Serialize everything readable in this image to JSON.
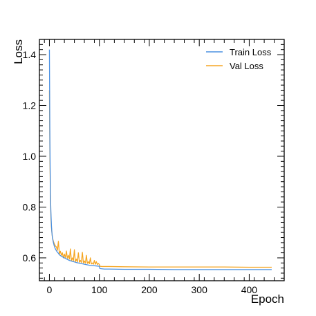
{
  "chart_data": {
    "type": "line",
    "xlabel": "Epoch",
    "ylabel": "Loss",
    "xlim": [
      -20,
      470
    ],
    "ylim": [
      0.51,
      1.46
    ],
    "x_ticks": [
      0,
      100,
      200,
      300,
      400
    ],
    "x_tick_labels": [
      "0",
      "100",
      "200",
      "300",
      "400"
    ],
    "y_ticks": [
      0.6,
      0.8,
      1.0,
      1.2,
      1.4
    ],
    "y_tick_labels": [
      "0.6",
      "0.8",
      "1.0",
      "1.2",
      "1.4"
    ],
    "grid": false,
    "legend_position": "top-right",
    "colors": {
      "train": "#4a90e2",
      "val": "#f5a623"
    },
    "series": [
      {
        "name": "Train Loss",
        "x": [
          0,
          1,
          2,
          3,
          4,
          5,
          6,
          8,
          10,
          12,
          15,
          18,
          20,
          25,
          30,
          35,
          40,
          45,
          50,
          55,
          60,
          65,
          70,
          75,
          80,
          85,
          90,
          95,
          100,
          101,
          105,
          110,
          120,
          150,
          200,
          250,
          300,
          350,
          400,
          445
        ],
        "y": [
          1.42,
          1.05,
          0.86,
          0.78,
          0.73,
          0.7,
          0.68,
          0.66,
          0.645,
          0.635,
          0.625,
          0.618,
          0.612,
          0.605,
          0.6,
          0.595,
          0.59,
          0.587,
          0.584,
          0.581,
          0.579,
          0.577,
          0.575,
          0.573,
          0.571,
          0.57,
          0.569,
          0.568,
          0.567,
          0.558,
          0.557,
          0.556,
          0.556,
          0.555,
          0.555,
          0.554,
          0.554,
          0.554,
          0.554,
          0.554
        ]
      },
      {
        "name": "Val Loss",
        "x": [
          0,
          1,
          2,
          3,
          4,
          5,
          6,
          8,
          10,
          12,
          14,
          16,
          18,
          20,
          22,
          24,
          26,
          28,
          30,
          32,
          34,
          36,
          38,
          40,
          42,
          44,
          46,
          48,
          50,
          52,
          54,
          56,
          58,
          60,
          62,
          64,
          66,
          68,
          70,
          72,
          74,
          76,
          78,
          80,
          82,
          84,
          86,
          88,
          90,
          92,
          94,
          96,
          98,
          100,
          101,
          105,
          110,
          120,
          150,
          200,
          250,
          300,
          350,
          400,
          445
        ],
        "y": [
          1.26,
          1.0,
          0.84,
          0.76,
          0.72,
          0.7,
          0.68,
          0.665,
          0.655,
          0.647,
          0.643,
          0.63,
          0.665,
          0.615,
          0.626,
          0.61,
          0.62,
          0.6,
          0.615,
          0.6,
          0.627,
          0.598,
          0.61,
          0.595,
          0.635,
          0.59,
          0.6,
          0.588,
          0.632,
          0.585,
          0.595,
          0.584,
          0.62,
          0.583,
          0.59,
          0.582,
          0.622,
          0.58,
          0.588,
          0.579,
          0.61,
          0.578,
          0.585,
          0.577,
          0.6,
          0.576,
          0.58,
          0.575,
          0.59,
          0.575,
          0.585,
          0.574,
          0.578,
          0.574,
          0.567,
          0.566,
          0.566,
          0.566,
          0.565,
          0.564,
          0.564,
          0.564,
          0.564,
          0.563,
          0.563
        ]
      }
    ]
  }
}
